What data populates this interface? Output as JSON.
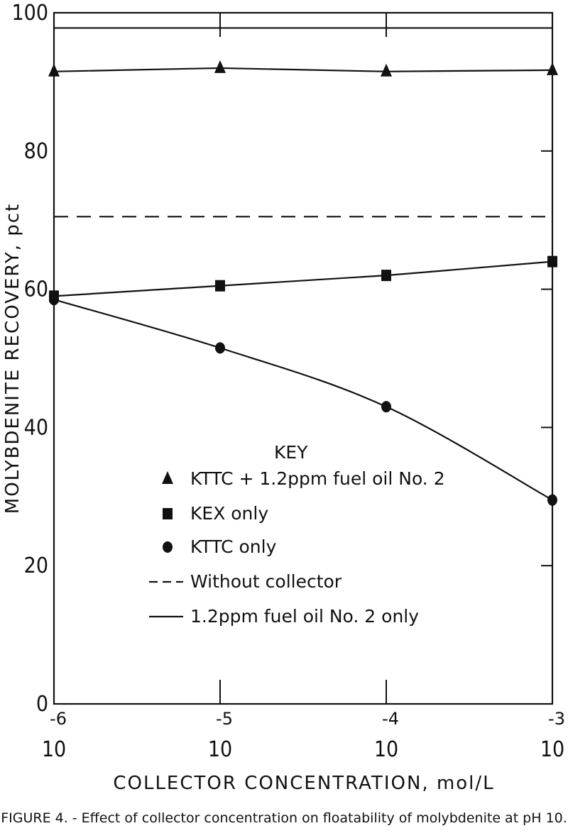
{
  "caption": "FIGURE 4. - Effect of collector concentration on floatability of molybdenite at pH 10.",
  "chart_data": {
    "type": "line",
    "xlabel": "COLLECTOR CONCENTRATION, mol/L",
    "ylabel": "MOLYBDENITE RECOVERY, pct",
    "x_scale": "log",
    "x": [
      1e-06,
      1e-05,
      0.0001,
      0.001
    ],
    "x_ticks": [
      {
        "base": "10",
        "exp": "-6"
      },
      {
        "base": "10",
        "exp": "-5"
      },
      {
        "base": "10",
        "exp": "-4"
      },
      {
        "base": "10",
        "exp": "-3"
      }
    ],
    "ylim": [
      0,
      100
    ],
    "y_ticks": [
      "0",
      "20",
      "40",
      "60",
      "80",
      "100"
    ],
    "legend_position": "bottom-left",
    "legend_title": "KEY",
    "series": [
      {
        "name": "KTTC + 1.2ppm fuel oil No. 2",
        "marker": "triangle",
        "line": "solid",
        "values": [
          91.5,
          92,
          91.5,
          91.7
        ]
      },
      {
        "name": "KEX only",
        "marker": "square",
        "line": "solid",
        "values": [
          59,
          60.5,
          62,
          64
        ]
      },
      {
        "name": "KTTC only",
        "marker": "circle",
        "line": "solid",
        "values": [
          58.5,
          51.5,
          43,
          29.5
        ]
      },
      {
        "name": "Without collector",
        "marker": "none",
        "line": "dashed",
        "values": [
          70.5,
          70.5,
          70.5,
          70.5
        ]
      },
      {
        "name": "1.2ppm fuel oil No. 2 only",
        "marker": "none",
        "line": "solid",
        "values": [
          97.8,
          97.8,
          97.8,
          97.8
        ]
      }
    ]
  }
}
